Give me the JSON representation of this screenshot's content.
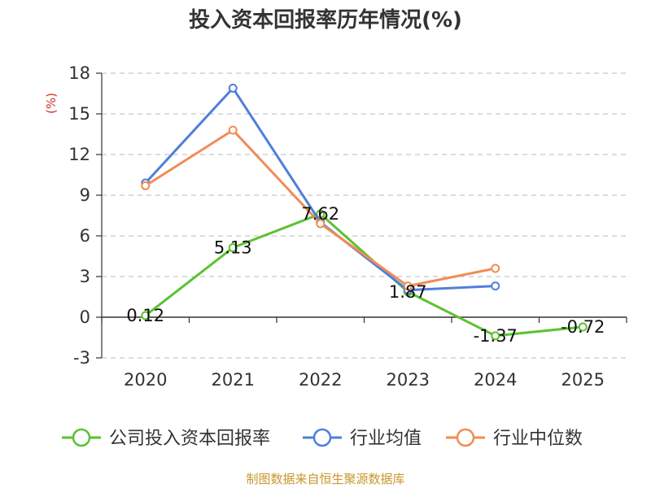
{
  "chart_data": {
    "type": "line",
    "title": "投入资本回报率历年情况(%)",
    "y_unit_label": "(%)",
    "categories": [
      "2020",
      "2021",
      "2022",
      "2023",
      "2024",
      "2025"
    ],
    "ylim": [
      -3,
      18
    ],
    "yticks": [
      -3,
      0,
      3,
      6,
      9,
      12,
      15,
      18
    ],
    "ytick_labels": [
      "-3",
      "0",
      "3",
      "6",
      "9",
      "12",
      "15",
      "18"
    ],
    "grid": true,
    "legend_position": "bottom",
    "series": [
      {
        "name": "公司投入资本回报率",
        "color": "#5cc22f",
        "values": [
          0.12,
          5.13,
          7.62,
          1.87,
          -1.37,
          -0.72
        ],
        "labels": [
          "0.12",
          "5.13",
          "7.62",
          "1.87",
          "-1.37",
          "-0.72"
        ]
      },
      {
        "name": "行业均值",
        "color": "#4f7fd9",
        "values": [
          9.9,
          16.9,
          7.0,
          2.0,
          2.3,
          null
        ]
      },
      {
        "name": "行业中位数",
        "color": "#f08c55",
        "values": [
          9.7,
          13.8,
          6.9,
          2.3,
          3.6,
          null
        ]
      }
    ],
    "source": "制图数据来自恒生聚源数据库",
    "colors": {
      "unit_label": "#d0302a",
      "source": "#c8962a",
      "grid": "#c8c8c8",
      "axis": "#333333"
    }
  }
}
